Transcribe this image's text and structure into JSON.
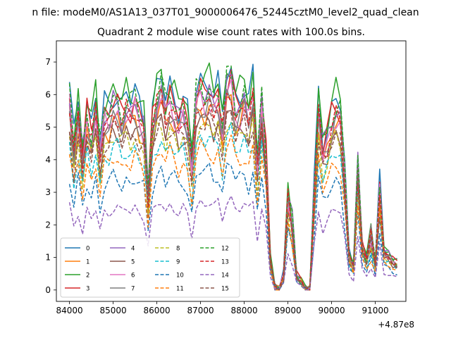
{
  "chart_data": {
    "type": "line",
    "suptitle": "n file: modeM0/AS1A13_037T01_9000006476_52445cztM0_level2_quad_clean",
    "title": "Quadrant 2 module wise count rates with 100.0s bins.",
    "xlabel": "",
    "ylabel": "",
    "x_offset_label": "+4.87e8",
    "xlim": [
      83700,
      91700
    ],
    "ylim": [
      -0.35,
      7.65
    ],
    "x_ticks": [
      84000,
      85000,
      86000,
      87000,
      88000,
      89000,
      90000,
      91000
    ],
    "x_tick_labels": [
      "84000",
      "85000",
      "86000",
      "87000",
      "88000",
      "89000",
      "90000",
      "91000"
    ],
    "y_ticks": [
      0,
      1,
      2,
      3,
      4,
      5,
      6,
      7
    ],
    "y_tick_labels": [
      "0",
      "1",
      "2",
      "3",
      "4",
      "5",
      "6",
      "7"
    ],
    "grid": false,
    "legend": {
      "placement": "lower-left",
      "columns": 4
    },
    "x_start": 84000,
    "x_step": 100,
    "bins": 76,
    "bright_profile": [
      6.4,
      4.8,
      6.1,
      4.5,
      5.9,
      5.2,
      6.2,
      4.6,
      5.9,
      5.9,
      6.3,
      6.2,
      5.8,
      6.2,
      6.0,
      6.3,
      5.9,
      5.6,
      3.3,
      5.7,
      6.4,
      6.8,
      6.0,
      6.5,
      6.2,
      5.8,
      6.1,
      5.6,
      4.2,
      6.4,
      6.7,
      6.5,
      6.7,
      6.3,
      6.5,
      5.4,
      6.9,
      7.1,
      6.1,
      6.2,
      6.5,
      5.9,
      6.7,
      4.2,
      6.3,
      4.5,
      1.0,
      0.1,
      0.0,
      0.5,
      3.2,
      2.2,
      0.5,
      0.3,
      0.0,
      0.0,
      3.2,
      6.2,
      4.8,
      5.2,
      5.8,
      6.1,
      5.9,
      3.8,
      1.2,
      0.8,
      4.2,
      1.5,
      1.0,
      1.8,
      0.9,
      3.4,
      1.3,
      1.2,
      1.0,
      0.9
    ],
    "series": [
      {
        "name": "0",
        "color": "#1f77b4",
        "dash": "solid",
        "level": 6.0
      },
      {
        "name": "1",
        "color": "#ff7f0e",
        "dash": "solid",
        "level": 5.2
      },
      {
        "name": "2",
        "color": "#2ca02c",
        "dash": "solid",
        "level": 6.1
      },
      {
        "name": "3",
        "color": "#d62728",
        "dash": "solid",
        "level": 5.7
      },
      {
        "name": "4",
        "color": "#9467bd",
        "dash": "solid",
        "level": 5.6
      },
      {
        "name": "5",
        "color": "#8c564b",
        "dash": "solid",
        "level": 4.9
      },
      {
        "name": "6",
        "color": "#e377c2",
        "dash": "solid",
        "level": 5.4
      },
      {
        "name": "7",
        "color": "#7f7f7f",
        "dash": "solid",
        "level": 5.3
      },
      {
        "name": "8",
        "color": "#bcbd22",
        "dash": "dashed",
        "level": 4.7
      },
      {
        "name": "9",
        "color": "#17becf",
        "dash": "dashed",
        "level": 4.3
      },
      {
        "name": "10",
        "color": "#1f77b4",
        "dash": "dashed",
        "level": 3.4
      },
      {
        "name": "11",
        "color": "#ff7f0e",
        "dash": "dashed",
        "level": 4.0
      },
      {
        "name": "12",
        "color": "#2ca02c",
        "dash": "dashed",
        "level": 5.8
      },
      {
        "name": "13",
        "color": "#d62728",
        "dash": "dashed",
        "level": 5.4
      },
      {
        "name": "14",
        "color": "#9467bd",
        "dash": "dashed",
        "level": 2.5
      },
      {
        "name": "15",
        "color": "#8c564b",
        "dash": "dashed",
        "level": 4.8
      }
    ]
  }
}
